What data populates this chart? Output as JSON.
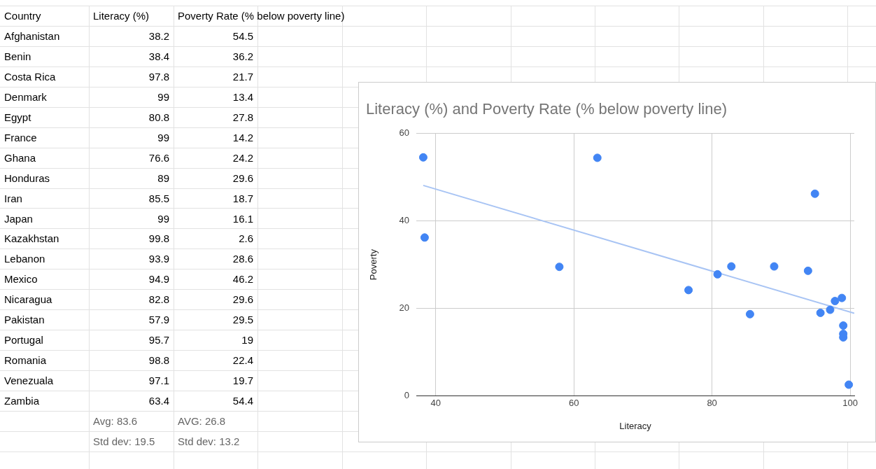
{
  "chart_data": {
    "type": "scatter",
    "title": "Literacy (%) and Poverty Rate (% below poverty line)",
    "xlabel": "Literacy",
    "ylabel": "Poverty",
    "xlim": [
      37.2,
      100.6
    ],
    "xticks": [
      40,
      60,
      80,
      100
    ],
    "ylim": [
      0,
      60
    ],
    "yticks": [
      0,
      20,
      40,
      60
    ],
    "grid": true,
    "series": [
      {
        "type": "scatter",
        "marker": "circle",
        "color": "#4285f4",
        "x": [
          38.2,
          38.4,
          97.8,
          99,
          80.8,
          99,
          76.6,
          89,
          85.5,
          99,
          99.8,
          93.9,
          94.9,
          82.8,
          57.9,
          95.7,
          98.8,
          97.1,
          63.4
        ],
        "values": [
          54.5,
          36.2,
          21.7,
          13.4,
          27.8,
          14.2,
          24.2,
          29.6,
          18.7,
          16.1,
          2.6,
          28.6,
          46.2,
          29.6,
          29.5,
          19,
          22.4,
          19.7,
          54.4
        ]
      },
      {
        "type": "line",
        "color": "#a8c4f4",
        "x": [
          38.2,
          100.6
        ],
        "values": [
          48.1,
          18.9
        ]
      }
    ],
    "annotations": [
      "Country",
      "Literacy (%)",
      "Poverty Rate (% below poverty line)",
      "Afghanistan",
      "38.2",
      "54.5",
      "Benin",
      "38.4",
      "36.2",
      "Costa Rica",
      "97.8",
      "21.7",
      "Denmark",
      "99",
      "13.4",
      "Egypt",
      "80.8",
      "27.8",
      "France",
      "99",
      "14.2",
      "Ghana",
      "76.6",
      "24.2",
      "Honduras",
      "89",
      "29.6",
      "Iran",
      "85.5",
      "18.7",
      "Japan",
      "99",
      "16.1",
      "Kazakhstan",
      "99.8",
      "2.6",
      "Lebanon",
      "93.9",
      "28.6",
      "Mexico",
      "94.9",
      "46.2",
      "Nicaragua",
      "82.8",
      "29.6",
      "Pakistan",
      "57.9",
      "29.5",
      "Portugal",
      "95.7",
      "19",
      "Romania",
      "98.8",
      "22.4",
      "Venezuala",
      "97.1",
      "19.7",
      "Zambia",
      "63.4",
      "54.4",
      "Avg: 83.6",
      "AVG: 26.8",
      "Std dev: 19.5",
      "Std dev: 13.2"
    ]
  }
}
